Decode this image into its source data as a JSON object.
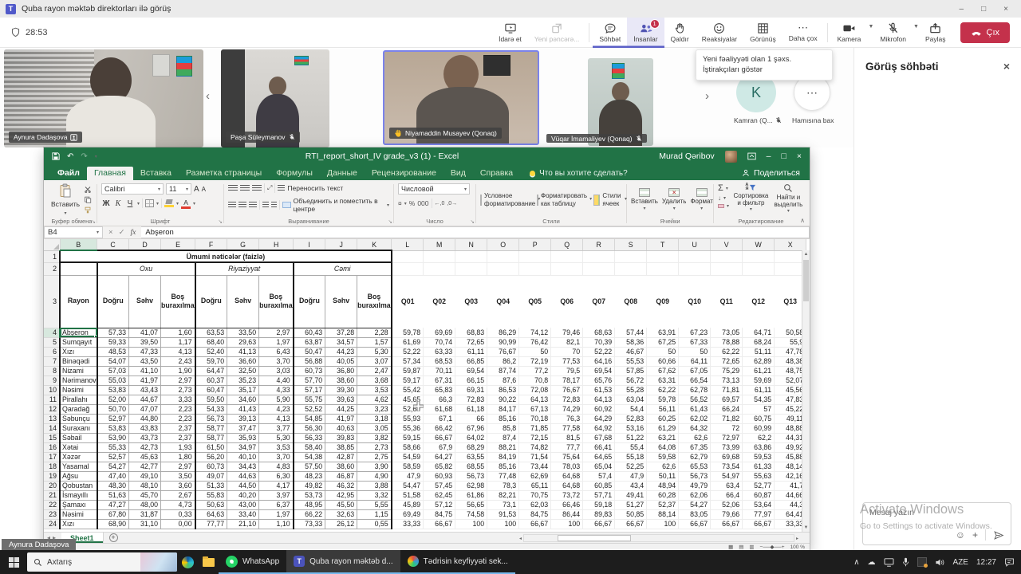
{
  "meeting": {
    "title": "Quba rayon məktəb direktorları ilə görüş",
    "timer": "28:53",
    "people_badge": "1",
    "tooltip": "Yeni fəaliyyəti olan 1 şəxs. İştirakçıları göstər",
    "controls": [
      "İdarə et",
      "Yeni pəncərə...",
      "Söhbət",
      "İnsanlar",
      "Qaldır",
      "Reaksiyalar",
      "Görünüş",
      "Daha çox",
      "Kamera",
      "Mikrofon",
      "Paylaş",
      "Çıx"
    ],
    "participants": [
      {
        "name": "Aynura Dadaşova"
      },
      {
        "name": "Paşa Süleymanov"
      },
      {
        "name": "Niyamaddin Musayev (Qonaq)"
      },
      {
        "name": "Vüqar İmamaliyev (Qonaq)"
      }
    ],
    "avatar_initial": "K",
    "avatar_label": "Kamran (Q...",
    "overflow_label": "Hamısına bax"
  },
  "chat": {
    "header": "Görüş söhbəti",
    "placeholder": "Mesaj yazın"
  },
  "watermark": {
    "line1": "Activate Windows",
    "line2": "Go to Settings to activate Windows."
  },
  "excel": {
    "title": "RTI_report_short_IV grade_v3 (1) - Excel",
    "user": "Murad Qəribov",
    "search_hint": "Что вы хотите сделать?",
    "share_label": "Поделиться",
    "tabs": [
      "Файл",
      "Главная",
      "Вставка",
      "Разметка страницы",
      "Формулы",
      "Данные",
      "Рецензирование",
      "Вид",
      "Справка"
    ],
    "name_box": "B4",
    "fx_label": "fx",
    "formula_value": "Abşeron",
    "sheet_tab": "Sheet1",
    "zoom_level": "100 %",
    "ribbon": {
      "paste": "Вставить",
      "clipboard_group": "Буфер обмена",
      "font_name": "Calibri",
      "font_size": "11",
      "bold": "Ж",
      "italic": "К",
      "underline": "Ч",
      "font_group": "Шрифт",
      "wrap": "Переносить текст",
      "merge": "Объединить и поместить в центре",
      "align_group": "Выравнивание",
      "number_format": "Числовой",
      "number_group": "Число",
      "conditional": "Условное форматирование",
      "format_table": "Форматировать как таблицу",
      "cell_styles": "Стили ячеек",
      "styles_group": "Стили",
      "insert": "Вставить",
      "delete": "Удалить",
      "format": "Формат",
      "cells_group": "Ячейки",
      "sort_filter": "Сортировка и фильтр",
      "find_select": "Найти и выделить",
      "editing_group": "Редактирование"
    }
  },
  "sheet": {
    "columns": [
      "B",
      "C",
      "D",
      "E",
      "F",
      "G",
      "H",
      "I",
      "J",
      "K",
      "L",
      "M",
      "N",
      "O",
      "P",
      "Q",
      "R",
      "S",
      "T",
      "U",
      "V",
      "W",
      "X"
    ],
    "title": "Ümumi nəticələr (faizlə)",
    "groups": [
      "Oxu",
      "Riyaziyyat",
      "Cəmi"
    ],
    "sub_headers": [
      "Doğru",
      "Səhv",
      "Boş buraxılma"
    ],
    "rayon_header": "Rayon",
    "q_headers": [
      "Q01",
      "Q02",
      "Q03",
      "Q04",
      "Q05",
      "Q06",
      "Q07",
      "Q08",
      "Q09",
      "Q10",
      "Q11",
      "Q12",
      "Q13"
    ],
    "rows": [
      {
        "n": 4,
        "name": "Abşeron",
        "v": [
          "57,33",
          "41,07",
          "1,60",
          "63,53",
          "33,50",
          "2,97",
          "60,43",
          "37,28",
          "2,28",
          "59,78",
          "69,69",
          "68,83",
          "86,29",
          "74,12",
          "79,46",
          "68,63",
          "57,44",
          "63,91",
          "67,23",
          "73,05",
          "64,71",
          "50,58"
        ]
      },
      {
        "n": 5,
        "name": "Sumqayıt",
        "v": [
          "59,33",
          "39,50",
          "1,17",
          "68,40",
          "29,63",
          "1,97",
          "63,87",
          "34,57",
          "1,57",
          "61,69",
          "70,74",
          "72,65",
          "90,99",
          "76,42",
          "82,1",
          "70,39",
          "58,36",
          "67,25",
          "67,33",
          "78,88",
          "68,24",
          "55,9"
        ]
      },
      {
        "n": 6,
        "name": "Xızı",
        "v": [
          "48,53",
          "47,33",
          "4,13",
          "52,40",
          "41,13",
          "6,43",
          "50,47",
          "44,23",
          "5,30",
          "52,22",
          "63,33",
          "61,11",
          "76,67",
          "50",
          "70",
          "52,22",
          "46,67",
          "50",
          "50",
          "62,22",
          "51,11",
          "47,78"
        ]
      },
      {
        "n": 7,
        "name": "Binəqədi",
        "v": [
          "54,07",
          "43,50",
          "2,43",
          "59,70",
          "36,60",
          "3,70",
          "56,88",
          "40,05",
          "3,07",
          "57,34",
          "68,53",
          "66,85",
          "86,2",
          "72,19",
          "77,53",
          "64,16",
          "55,53",
          "60,66",
          "64,11",
          "72,65",
          "62,89",
          "48,38"
        ]
      },
      {
        "n": 8,
        "name": "Nizami",
        "v": [
          "57,03",
          "41,10",
          "1,90",
          "64,47",
          "32,50",
          "3,03",
          "60,73",
          "36,80",
          "2,47",
          "59,87",
          "70,11",
          "69,54",
          "87,74",
          "77,2",
          "79,5",
          "69,54",
          "57,85",
          "67,62",
          "67,05",
          "75,29",
          "61,21",
          "48,75"
        ]
      },
      {
        "n": 9,
        "name": "Nərimanov",
        "v": [
          "55,03",
          "41,97",
          "2,97",
          "60,37",
          "35,23",
          "4,40",
          "57,70",
          "38,60",
          "3,68",
          "59,17",
          "67,31",
          "66,15",
          "87,6",
          "70,8",
          "78,17",
          "65,76",
          "56,72",
          "63,31",
          "66,54",
          "73,13",
          "59,69",
          "52,07"
        ]
      },
      {
        "n": 10,
        "name": "Nəsimi",
        "v": [
          "53,83",
          "43,43",
          "2,73",
          "60,47",
          "35,17",
          "4,33",
          "57,17",
          "39,30",
          "3,53",
          "55,42",
          "65,83",
          "69,31",
          "86,53",
          "72,08",
          "76,67",
          "61,53",
          "55,28",
          "62,22",
          "62,78",
          "71,81",
          "61,11",
          "45,56"
        ]
      },
      {
        "n": 11,
        "name": "Pirallahı",
        "v": [
          "52,00",
          "44,67",
          "3,33",
          "59,50",
          "34,60",
          "5,90",
          "55,75",
          "39,63",
          "4,62",
          "45,65",
          "66,3",
          "72,83",
          "90,22",
          "64,13",
          "72,83",
          "64,13",
          "63,04",
          "59,78",
          "56,52",
          "69,57",
          "54,35",
          "47,83"
        ]
      },
      {
        "n": 12,
        "name": "Qaradağ",
        "v": [
          "50,70",
          "47,07",
          "2,23",
          "54,33",
          "41,43",
          "4,23",
          "52,52",
          "44,25",
          "3,23",
          "52,69",
          "61,68",
          "61,18",
          "84,17",
          "67,13",
          "74,29",
          "60,92",
          "54,4",
          "56,11",
          "61,43",
          "66,24",
          "57",
          "45,22"
        ]
      },
      {
        "n": 13,
        "name": "Səbunçu",
        "v": [
          "52,97",
          "44,80",
          "2,23",
          "56,73",
          "39,13",
          "4,13",
          "54,85",
          "41,97",
          "3,18",
          "55,93",
          "67,1",
          "66",
          "85,16",
          "70,18",
          "76,3",
          "64,29",
          "52,83",
          "60,25",
          "62,02",
          "71,82",
          "60,75",
          "49,11"
        ]
      },
      {
        "n": 14,
        "name": "Suraxanı",
        "v": [
          "53,83",
          "43,83",
          "2,37",
          "58,77",
          "37,47",
          "3,77",
          "56,30",
          "40,63",
          "3,05",
          "55,36",
          "66,42",
          "67,96",
          "85,8",
          "71,85",
          "77,58",
          "64,92",
          "53,16",
          "61,29",
          "64,32",
          "72",
          "60,99",
          "48,88"
        ]
      },
      {
        "n": 15,
        "name": "Səbail",
        "v": [
          "53,90",
          "43,73",
          "2,37",
          "58,77",
          "35,93",
          "5,30",
          "56,33",
          "39,83",
          "3,82",
          "59,15",
          "66,67",
          "64,02",
          "87,4",
          "72,15",
          "81,5",
          "67,68",
          "51,22",
          "63,21",
          "62,6",
          "72,97",
          "62,2",
          "44,31"
        ]
      },
      {
        "n": 16,
        "name": "Xətai",
        "v": [
          "55,33",
          "42,73",
          "1,93",
          "61,50",
          "34,97",
          "3,53",
          "58,40",
          "38,85",
          "2,73",
          "58,66",
          "67,9",
          "68,29",
          "88,21",
          "74,82",
          "77,7",
          "66,41",
          "55,4",
          "64,08",
          "67,35",
          "73,99",
          "63,86",
          "49,92"
        ]
      },
      {
        "n": 17,
        "name": "Xəzər",
        "v": [
          "52,57",
          "45,63",
          "1,80",
          "56,20",
          "40,10",
          "3,70",
          "54,38",
          "42,87",
          "2,75",
          "54,59",
          "64,27",
          "63,55",
          "84,19",
          "71,54",
          "75,64",
          "64,65",
          "55,18",
          "59,58",
          "62,79",
          "69,68",
          "59,53",
          "45,88"
        ]
      },
      {
        "n": 18,
        "name": "Yasamal",
        "v": [
          "54,27",
          "42,77",
          "2,97",
          "60,73",
          "34,43",
          "4,83",
          "57,50",
          "38,60",
          "3,90",
          "58,59",
          "65,82",
          "68,55",
          "85,16",
          "73,44",
          "78,03",
          "65,04",
          "52,25",
          "62,6",
          "65,53",
          "73,54",
          "61,33",
          "48,14"
        ]
      },
      {
        "n": 19,
        "name": "Ağsu",
        "v": [
          "47,40",
          "49,10",
          "3,50",
          "49,07",
          "44,63",
          "6,30",
          "48,23",
          "46,87",
          "4,90",
          "47,9",
          "60,93",
          "56,73",
          "77,48",
          "62,69",
          "64,68",
          "57,4",
          "47,9",
          "50,11",
          "56,73",
          "54,97",
          "55,63",
          "42,16"
        ]
      },
      {
        "n": 20,
        "name": "Qobustan",
        "v": [
          "48,30",
          "48,10",
          "3,60",
          "51,33",
          "44,50",
          "4,17",
          "49,82",
          "46,32",
          "3,88",
          "54,47",
          "57,45",
          "62,98",
          "78,3",
          "65,11",
          "64,68",
          "60,85",
          "43,4",
          "48,94",
          "49,79",
          "63,4",
          "52,77",
          "41,7"
        ]
      },
      {
        "n": 21,
        "name": "İsmayıllı",
        "v": [
          "51,63",
          "45,70",
          "2,67",
          "55,83",
          "40,20",
          "3,97",
          "53,73",
          "42,95",
          "3,32",
          "51,58",
          "62,45",
          "61,86",
          "82,21",
          "70,75",
          "73,72",
          "57,71",
          "49,41",
          "60,28",
          "62,06",
          "66,4",
          "60,87",
          "44,66"
        ]
      },
      {
        "n": 22,
        "name": "Şamaxı",
        "v": [
          "47,27",
          "48,00",
          "4,73",
          "50,63",
          "43,00",
          "6,37",
          "48,95",
          "45,50",
          "5,55",
          "45,89",
          "57,12",
          "56,65",
          "73,1",
          "62,03",
          "66,46",
          "59,18",
          "51,27",
          "52,37",
          "54,27",
          "52,06",
          "53,64",
          "44,3"
        ]
      },
      {
        "n": 23,
        "name": "Nəsimi",
        "v": [
          "67,80",
          "31,87",
          "0,33",
          "64,63",
          "33,40",
          "1,97",
          "66,22",
          "32,63",
          "1,15",
          "69,49",
          "84,75",
          "74,58",
          "91,53",
          "84,75",
          "86,44",
          "89,83",
          "50,85",
          "88,14",
          "83,05",
          "79,66",
          "77,97",
          "64,41"
        ]
      },
      {
        "n": 24,
        "name": "Xızı",
        "v": [
          "68,90",
          "31,10",
          "0,00",
          "77,77",
          "21,10",
          "1,10",
          "73,33",
          "26,12",
          "0,55",
          "33,33",
          "66,67",
          "100",
          "100",
          "66,67",
          "100",
          "66,67",
          "66,67",
          "100",
          "66,67",
          "66,67",
          "66,67",
          "33,33"
        ]
      }
    ]
  },
  "presenter": "Aynura Dadaşova",
  "taskbar": {
    "search_placeholder": "Axtarış",
    "apps": [
      "WhatsApp",
      "Quba rayon məktəb d...",
      "Tədrisin keyfiyyəti sek..."
    ],
    "language": "AZE",
    "time": "12:27"
  }
}
